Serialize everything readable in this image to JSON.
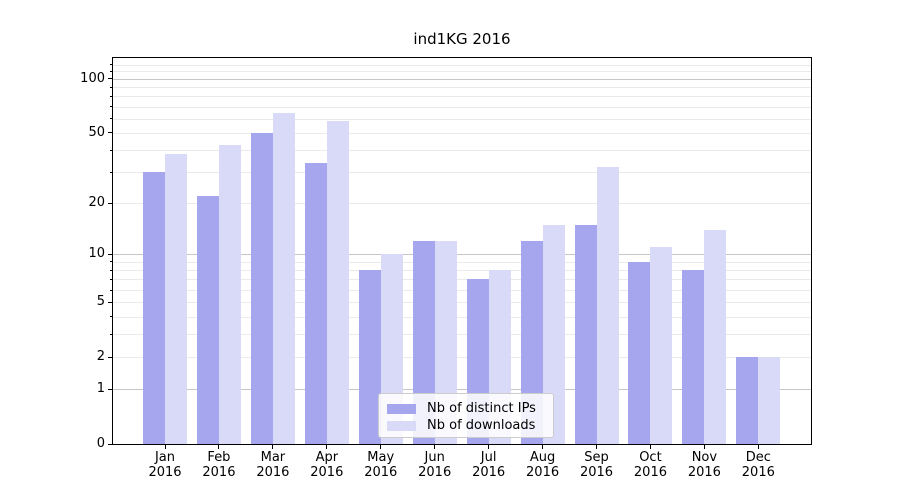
{
  "title": "ind1KG 2016",
  "chart_data": {
    "type": "bar",
    "title": "ind1KG 2016",
    "categories": [
      "Jan",
      "Feb",
      "Mar",
      "Apr",
      "May",
      "Jun",
      "Jul",
      "Aug",
      "Sep",
      "Oct",
      "Nov",
      "Dec"
    ],
    "category_year": "2016",
    "series": [
      {
        "name": "Nb of distinct IPs",
        "color": "#a6a6ee",
        "values": [
          30,
          22,
          50,
          34,
          8,
          12,
          7,
          12,
          15,
          9,
          8,
          2
        ]
      },
      {
        "name": "Nb of downloads",
        "color": "#d9d9f8",
        "values": [
          38,
          43,
          65,
          58,
          10,
          12,
          8,
          15,
          32,
          11,
          14,
          2
        ]
      }
    ],
    "yscale": "log1p",
    "ylim": [
      0,
      130.5
    ],
    "yticks": [
      0,
      1,
      2,
      5,
      10,
      20,
      50,
      100
    ],
    "grid": {
      "major_ticks": [
        1,
        10,
        100
      ],
      "minor_ticks": [
        2,
        3,
        4,
        5,
        6,
        7,
        8,
        9,
        20,
        30,
        40,
        50,
        60,
        70,
        80,
        90,
        110,
        120
      ],
      "major_color": "#c6c6c6",
      "minor_color": "#eaeaea"
    },
    "legend": {
      "position": "lower-center-inside"
    }
  }
}
